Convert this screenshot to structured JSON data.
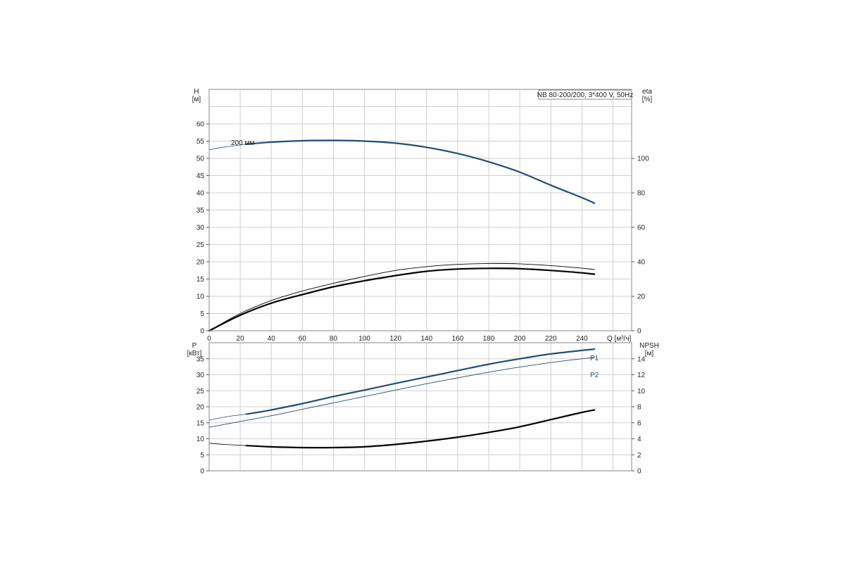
{
  "title": "NB 80-200/200, 3*400 V, 50Hz",
  "colors": {
    "blue": "#1f4e79",
    "black": "#000000",
    "grid": "#cfcfcf",
    "frame": "#8a8a8a"
  },
  "chart_data": [
    {
      "type": "line",
      "panel": "top",
      "x_label": "Q [м³/ч]",
      "y_left_label_1": "H",
      "y_left_label_2": "[м]",
      "y_right_label_1": "eta",
      "y_right_label_2": "[%]",
      "x_range": [
        0,
        272
      ],
      "y_left_range": [
        0,
        70
      ],
      "y_right_range": [
        0,
        140
      ],
      "x_ticks": [
        0,
        20,
        40,
        60,
        80,
        100,
        120,
        140,
        160,
        180,
        200,
        220,
        240
      ],
      "y_left_ticks": [
        0,
        5,
        10,
        15,
        20,
        25,
        30,
        35,
        40,
        45,
        50,
        55,
        60
      ],
      "y_right_ticks": [
        0,
        20,
        40,
        60,
        80,
        100
      ],
      "annotation": "200 мм",
      "grid": true,
      "series": [
        {
          "key": "H_ext",
          "axis": "left",
          "color": "#1f4e79",
          "width": 0.8,
          "x": [
            0,
            10,
            24
          ],
          "y": [
            52.5,
            53.3,
            54.1
          ]
        },
        {
          "key": "H",
          "axis": "left",
          "color": "#1f4e79",
          "width": 2.2,
          "x": [
            24,
            40,
            60,
            80,
            100,
            120,
            140,
            160,
            180,
            200,
            220,
            240,
            248
          ],
          "y": [
            54.1,
            54.7,
            55.1,
            55.2,
            55.0,
            54.4,
            53.2,
            51.4,
            49.0,
            46.0,
            42.2,
            38.6,
            37.0
          ]
        },
        {
          "key": "eta_thin",
          "axis": "right",
          "color": "#000000",
          "width": 0.9,
          "x": [
            0,
            20,
            40,
            60,
            80,
            100,
            120,
            140,
            160,
            180,
            200,
            220,
            240,
            248
          ],
          "y": [
            0,
            10,
            17.5,
            23,
            27.5,
            31.5,
            35,
            37.2,
            38.5,
            39,
            38.8,
            37.8,
            36.3,
            35.5
          ]
        },
        {
          "key": "eta",
          "axis": "right",
          "color": "#000000",
          "width": 2.2,
          "x": [
            0,
            20,
            40,
            60,
            80,
            100,
            120,
            140,
            160,
            180,
            200,
            220,
            240,
            248
          ],
          "y": [
            0,
            9,
            16,
            21,
            25.5,
            29,
            32,
            34.5,
            35.8,
            36.2,
            36,
            35,
            33.6,
            32.8
          ]
        }
      ]
    },
    {
      "type": "line",
      "panel": "bottom",
      "y_left_label_1": "P",
      "y_left_label_2": "[кВт]",
      "y_right_label_1": "NPSH",
      "y_right_label_2": "[м]",
      "x_range": [
        0,
        272
      ],
      "y_left_range": [
        0,
        40
      ],
      "y_right_range": [
        0,
        16
      ],
      "y_left_ticks": [
        0,
        5,
        10,
        15,
        20,
        25,
        30,
        35
      ],
      "y_right_ticks": [
        0,
        2,
        4,
        6,
        8,
        10,
        12,
        14
      ],
      "grid": true,
      "series": [
        {
          "key": "P1_ext",
          "axis": "left",
          "color": "#1f4e79",
          "width": 0.8,
          "x": [
            0,
            10,
            24
          ],
          "y": [
            15.8,
            16.8,
            17.7
          ]
        },
        {
          "key": "P1",
          "name": "P1",
          "axis": "left",
          "color": "#1f4e79",
          "width": 2.2,
          "x": [
            24,
            40,
            60,
            80,
            100,
            120,
            140,
            160,
            180,
            200,
            220,
            240,
            248
          ],
          "y": [
            17.7,
            19.0,
            21.0,
            23.2,
            25.2,
            27.3,
            29.3,
            31.3,
            33.3,
            35.0,
            36.5,
            37.6,
            38.0
          ]
        },
        {
          "key": "P2",
          "name": "P2",
          "axis": "left",
          "color": "#1f4e79",
          "width": 0.9,
          "x": [
            0,
            20,
            40,
            60,
            80,
            100,
            120,
            140,
            160,
            180,
            200,
            220,
            240,
            248
          ],
          "y": [
            13.6,
            15.4,
            17.2,
            19.2,
            21.2,
            23.2,
            25.2,
            27.2,
            29.0,
            30.8,
            32.4,
            33.8,
            35.0,
            35.4
          ]
        },
        {
          "key": "NPSH_ext",
          "axis": "right",
          "color": "#000000",
          "width": 0.8,
          "x": [
            0,
            10,
            24
          ],
          "y": [
            3.45,
            3.3,
            3.15
          ]
        },
        {
          "key": "NPSH",
          "axis": "right",
          "color": "#000000",
          "width": 2.2,
          "x": [
            24,
            40,
            60,
            80,
            100,
            120,
            140,
            160,
            180,
            200,
            220,
            240,
            248
          ],
          "y": [
            3.15,
            3.0,
            2.9,
            2.9,
            3.0,
            3.3,
            3.7,
            4.2,
            4.8,
            5.5,
            6.4,
            7.3,
            7.6
          ]
        }
      ]
    }
  ]
}
